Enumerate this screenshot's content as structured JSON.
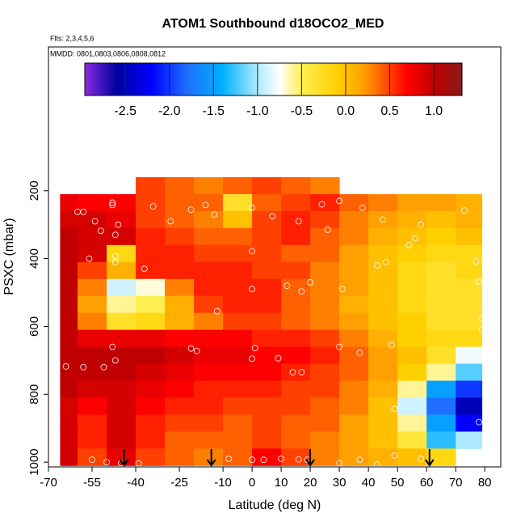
{
  "chart_data": {
    "type": "heatmap",
    "title": "ATOM1 Southbound d18OCO2_MED",
    "annotations": [
      "Flts: 2,3,4,5,6",
      "MMDD: 0801,0803,0806,0808,0812"
    ],
    "xlabel": "Latitude (deg N)",
    "ylabel": "PSXC (mbar)",
    "xlim": [
      -70,
      85.5
    ],
    "ylim": [
      1014,
      -224
    ],
    "xticks": [
      -70,
      -55,
      -40,
      -25,
      -10,
      0,
      10,
      20,
      30,
      40,
      50,
      60,
      70,
      80
    ],
    "yticks": [
      200,
      400,
      600,
      800,
      1000
    ],
    "x_edges": [
      -66,
      -60,
      -50,
      -40,
      -30,
      -20,
      -10,
      0,
      10,
      20,
      30,
      40,
      50,
      60,
      70,
      79
    ],
    "y_edges": [
      160,
      210,
      260,
      310,
      360,
      410,
      460,
      510,
      560,
      610,
      660,
      710,
      760,
      810,
      860,
      910,
      960,
      1010
    ],
    "z": [
      [
        null,
        null,
        null,
        0.5,
        0.4,
        0.3,
        0.4,
        0.5,
        0.4,
        0.3,
        null,
        null,
        null,
        null,
        null
      ],
      [
        0.8,
        0.7,
        0.7,
        0.5,
        0.4,
        0.4,
        -0.3,
        0.4,
        0.5,
        0.6,
        0.4,
        0.3,
        0.2,
        0.2,
        0.1
      ],
      [
        0.9,
        0.9,
        0.8,
        0.5,
        0.4,
        0.3,
        0.0,
        0.5,
        0.6,
        0.5,
        0.3,
        0.2,
        0.1,
        0.0,
        0.1
      ],
      [
        1.0,
        0.9,
        0.9,
        0.6,
        0.5,
        0.4,
        0.4,
        0.5,
        0.6,
        0.4,
        0.3,
        0.1,
        0.0,
        -0.1,
        0.0
      ],
      [
        1.0,
        0.9,
        -0.2,
        0.6,
        0.6,
        0.5,
        0.5,
        0.5,
        0.4,
        0.4,
        0.2,
        0.0,
        -0.1,
        -0.2,
        -0.2
      ],
      [
        1.0,
        0.5,
        0.1,
        0.6,
        0.6,
        0.6,
        0.6,
        0.5,
        0.5,
        0.3,
        0.2,
        0.0,
        -0.2,
        -0.3,
        -0.2
      ],
      [
        1.0,
        0.3,
        -0.9,
        -0.7,
        0.3,
        0.6,
        0.6,
        0.6,
        0.4,
        0.3,
        0.2,
        0.0,
        -0.2,
        -0.3,
        -0.3
      ],
      [
        1.0,
        0.2,
        -0.6,
        -0.5,
        0.1,
        0.5,
        0.6,
        0.6,
        0.4,
        0.3,
        0.1,
        0.0,
        -0.2,
        -0.3,
        -0.3
      ],
      [
        1.0,
        0.3,
        -0.3,
        -0.2,
        0.1,
        0.3,
        0.5,
        0.5,
        0.4,
        0.3,
        0.2,
        0.0,
        -0.1,
        -0.3,
        -0.3
      ],
      [
        1.0,
        0.8,
        0.8,
        0.8,
        0.7,
        0.7,
        0.7,
        0.6,
        0.6,
        0.5,
        0.3,
        0.1,
        -0.1,
        -0.2,
        -0.2
      ],
      [
        1.0,
        1.0,
        1.0,
        1.0,
        0.9,
        0.8,
        0.8,
        0.7,
        0.7,
        0.6,
        0.4,
        0.2,
        0.0,
        -0.3,
        -0.8
      ],
      [
        1.0,
        1.0,
        1.0,
        0.9,
        0.8,
        0.7,
        0.7,
        0.7,
        0.6,
        0.5,
        0.4,
        0.2,
        -0.1,
        -0.6,
        -1.2
      ],
      [
        1.0,
        0.9,
        0.9,
        0.8,
        0.7,
        0.6,
        0.6,
        0.6,
        0.5,
        0.5,
        0.3,
        0.1,
        -0.6,
        -1.5,
        -2.0
      ],
      [
        0.9,
        0.7,
        0.9,
        0.7,
        0.6,
        0.6,
        0.5,
        0.5,
        0.5,
        0.4,
        0.3,
        0.0,
        -0.9,
        -1.8,
        -2.5
      ],
      [
        0.9,
        0.6,
        0.9,
        0.6,
        0.5,
        0.5,
        0.4,
        0.5,
        0.4,
        0.4,
        0.2,
        0.0,
        -0.6,
        -1.5,
        -2.2
      ],
      [
        0.9,
        0.6,
        0.9,
        0.6,
        0.4,
        0.4,
        0.4,
        0.5,
        0.4,
        0.3,
        0.2,
        0.0,
        -0.4,
        -1.3,
        -1.0
      ],
      [
        0.9,
        0.5,
        0.8,
        0.5,
        0.4,
        0.3,
        0.4,
        0.7,
        0.5,
        0.3,
        0.2,
        0.1,
        0.0,
        -0.2,
        null
      ]
    ],
    "colorbar_lim": [
      -2.96,
      1.32
    ],
    "colorbar_ticks": [
      -2.5,
      {
        "value": -2,
        "label": "-2.0"
      },
      -1.5,
      {
        "value": -1,
        "label": "-1.0"
      },
      -0.5,
      {
        "value": 0,
        "label": "0.0"
      },
      0.5,
      {
        "value": 1,
        "label": "1.0"
      }
    ],
    "colorscale": [
      [
        -2.96,
        "#8a2be2"
      ],
      [
        -2.6,
        "#0000a0"
      ],
      [
        -2.2,
        "#0000ff"
      ],
      [
        -1.8,
        "#1e6eff"
      ],
      [
        -1.4,
        "#00b0ff"
      ],
      [
        -1.0,
        "#aeeaff"
      ],
      [
        -0.75,
        "#ffffff"
      ],
      [
        -0.5,
        "#ffee50"
      ],
      [
        -0.1,
        "#ffd000"
      ],
      [
        0.2,
        "#ffa000"
      ],
      [
        0.45,
        "#ff5000"
      ],
      [
        0.7,
        "#ff0000"
      ],
      [
        1.0,
        "#c00000"
      ],
      [
        1.32,
        "#8b1a1a"
      ]
    ],
    "points": {
      "x": [
        -69,
        -60,
        -58,
        -48,
        -48,
        -54,
        -46,
        -52,
        -34,
        -28,
        -21,
        -16,
        -13,
        0,
        7,
        16,
        26,
        24,
        30,
        38,
        45,
        58,
        56,
        54,
        73,
        -47,
        -56,
        -47,
        -37,
        -47,
        -12,
        0,
        0,
        12,
        17,
        20,
        31,
        46,
        43,
        80,
        77,
        78,
        79,
        79,
        78,
        -48,
        -47,
        -51,
        -58,
        -64,
        -21,
        -19,
        0,
        1,
        9,
        14,
        17,
        30,
        37,
        48,
        49,
        -55,
        -50,
        -45,
        -39,
        -69,
        -8,
        0,
        4,
        10,
        16,
        19,
        30,
        37,
        43,
        49,
        58
      ],
      "y": [
        230,
        262,
        262,
        235,
        242,
        290,
        300,
        318,
        246,
        290,
        256,
        242,
        270,
        250,
        275,
        290,
        315,
        240,
        230,
        250,
        285,
        300,
        340,
        360,
        258,
        330,
        400,
        393,
        430,
        410,
        555,
        378,
        490,
        480,
        497,
        470,
        490,
        410,
        420,
        400,
        408,
        468,
        610,
        578,
        882,
        660,
        700,
        720,
        720,
        718,
        665,
        672,
        695,
        664,
        694,
        735,
        735,
        660,
        678,
        655,
        843,
        993,
        1000,
        1003,
        1004,
        982,
        990,
        993,
        993,
        990,
        992,
        993,
        1003,
        993,
        1007,
        980,
        990
      ]
    },
    "arrows": [
      -44,
      -14,
      20,
      61
    ]
  }
}
